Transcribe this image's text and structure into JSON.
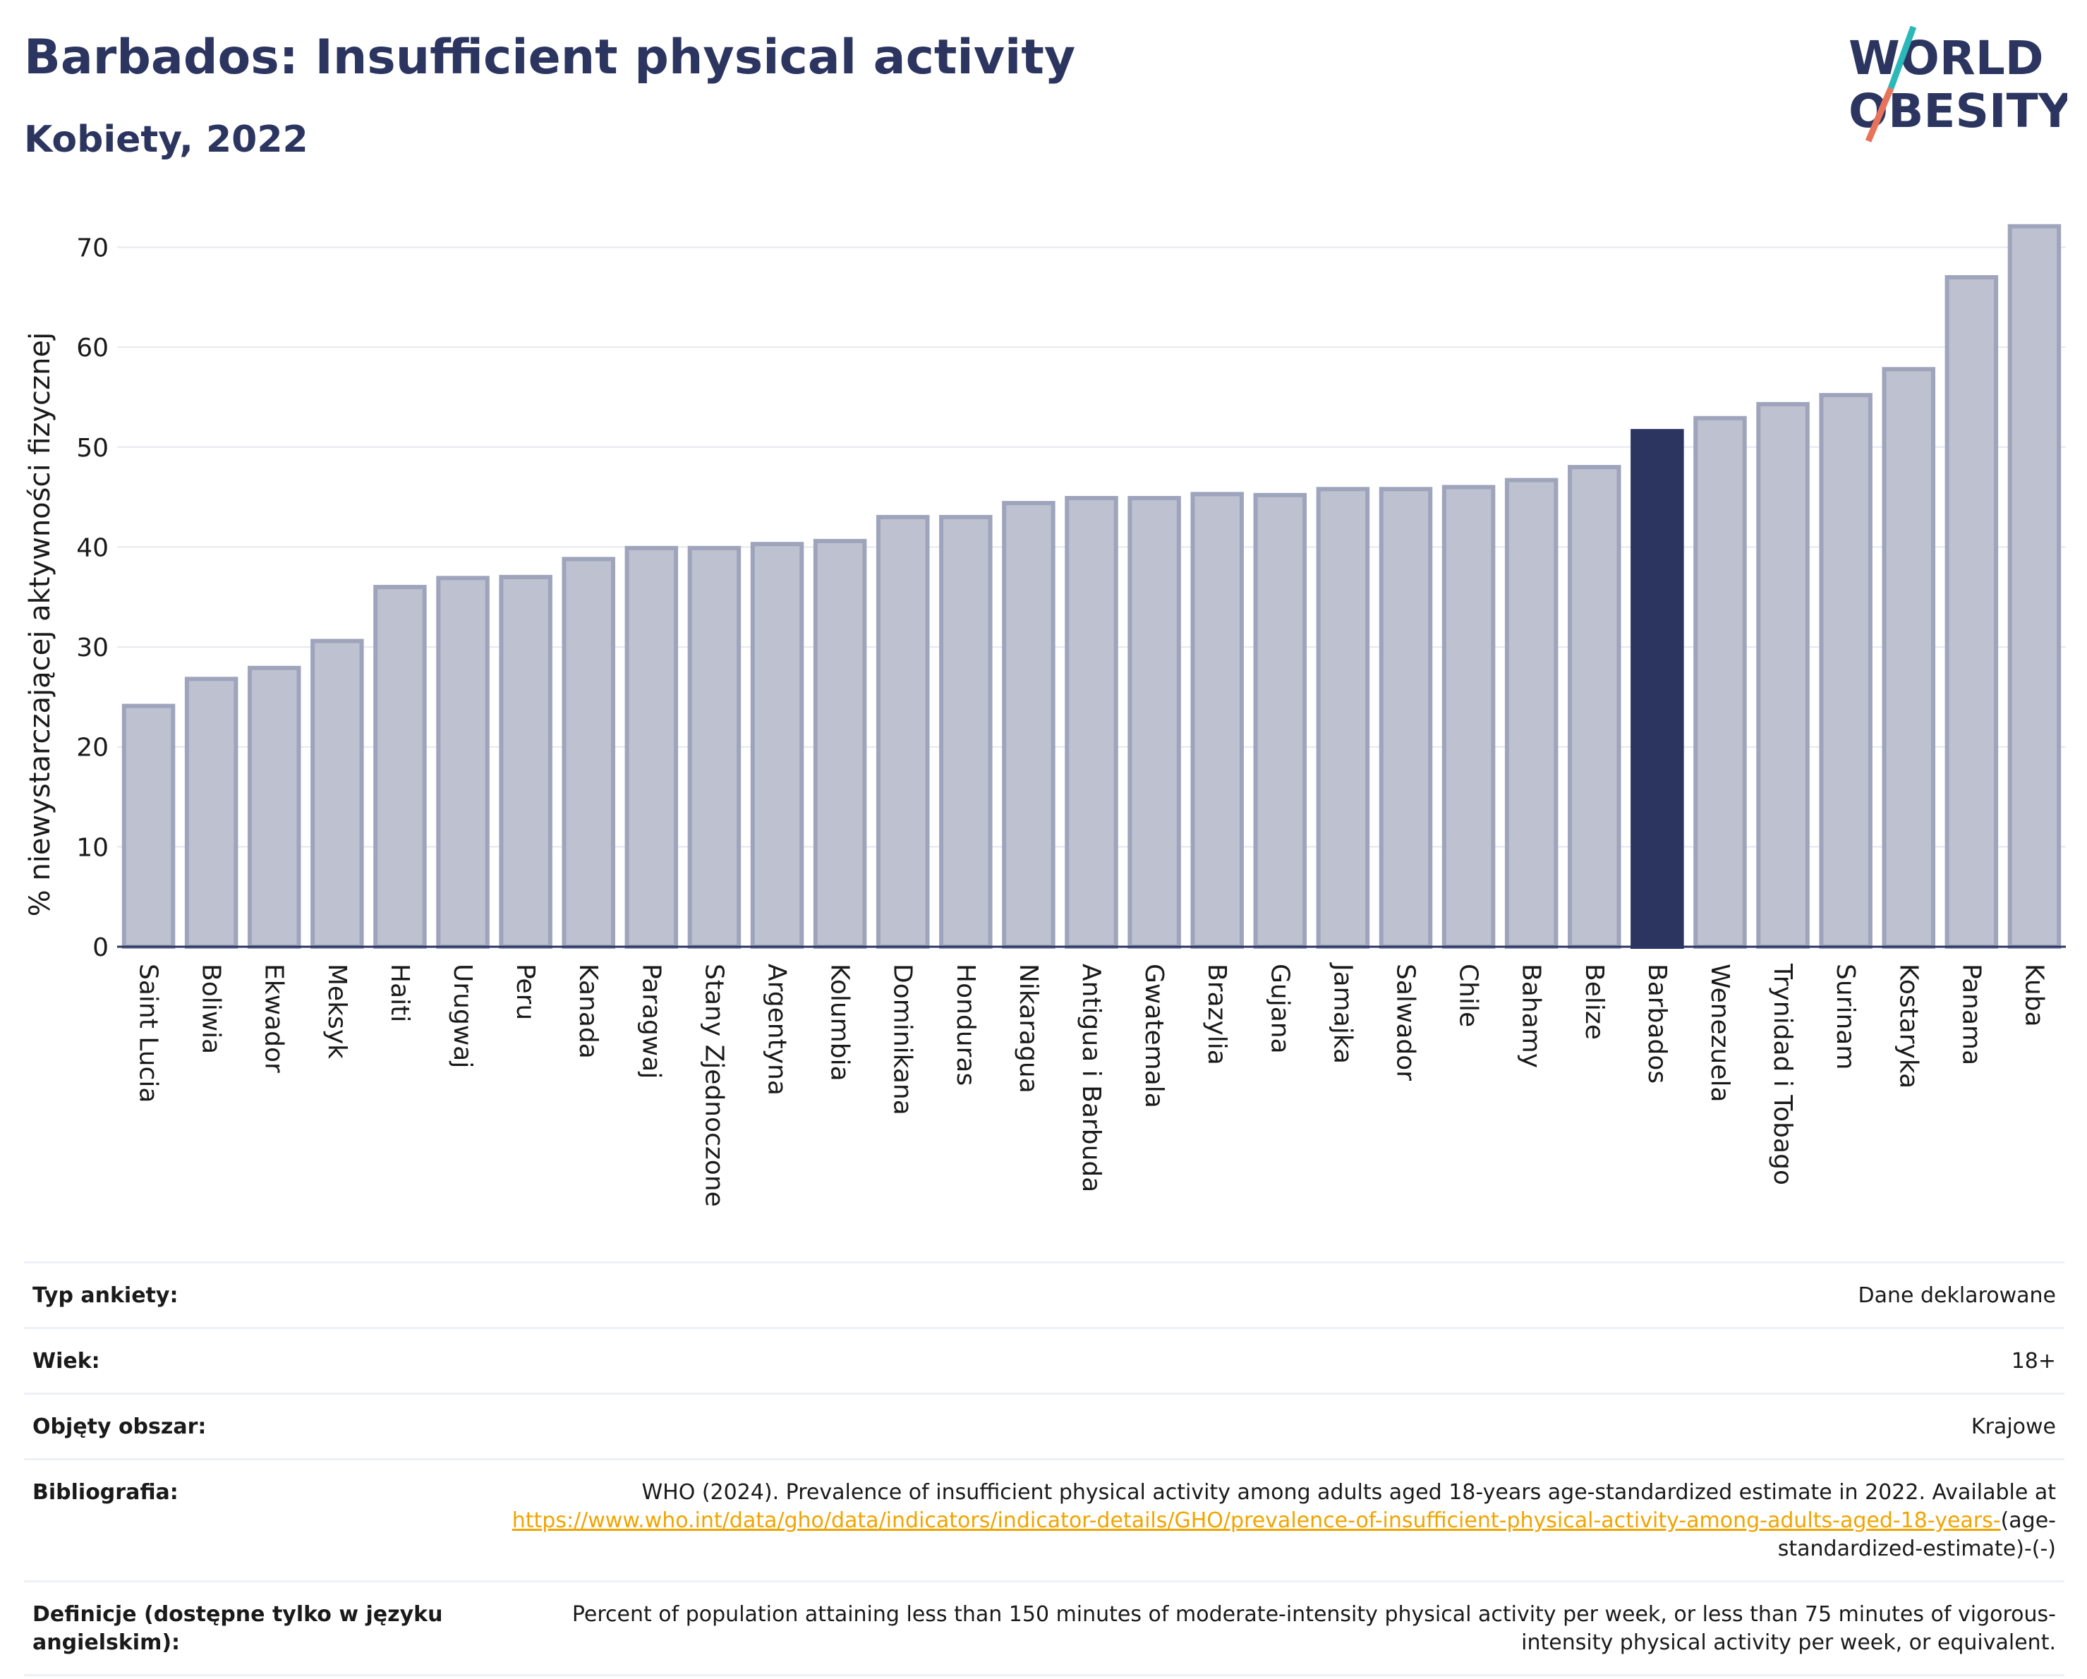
{
  "header": {
    "title": "Barbados: Insufficient physical activity",
    "subtitle": "Kobiety, 2022"
  },
  "logo": {
    "line1": "WORLD",
    "line2": "OBESITY",
    "accent_teal": "#2bb8b8",
    "accent_coral": "#e8735a"
  },
  "colors": {
    "bar": "#bec1cf",
    "bar_border": "#9ea4bb",
    "highlight": "#2b3560",
    "grid": "#e6e8ef",
    "axis": "#2b3560"
  },
  "chart_data": {
    "type": "bar",
    "ylabel": "% niewystarczającej aktywności fizycznej",
    "ylim": [
      0,
      73
    ],
    "yticks": [
      0,
      10,
      20,
      30,
      40,
      50,
      60,
      70
    ],
    "grid": true,
    "highlight": "Barbados",
    "categories": [
      "Saint Lucia",
      "Boliwia",
      "Ekwador",
      "Meksyk",
      "Haiti",
      "Urugwaj",
      "Peru",
      "Kanada",
      "Paragwaj",
      "Stany Zjednoczone",
      "Argentyna",
      "Kolumbia",
      "Dominikana",
      "Honduras",
      "Nikaragua",
      "Antigua i Barbuda",
      "Gwatemala",
      "Brazylia",
      "Gujana",
      "Jamajka",
      "Salwador",
      "Chile",
      "Bahamy",
      "Belize",
      "Barbados",
      "Wenezuela",
      "Trynidad i Tobago",
      "Surinam",
      "Kostaryka",
      "Panama",
      "Kuba"
    ],
    "values": [
      24.1,
      26.8,
      27.9,
      30.6,
      36.0,
      36.9,
      37.0,
      38.8,
      39.9,
      39.9,
      40.3,
      40.6,
      43.0,
      43.0,
      44.4,
      44.9,
      44.9,
      45.3,
      45.2,
      45.8,
      45.8,
      46.0,
      46.7,
      48.0,
      51.6,
      52.9,
      54.3,
      55.2,
      57.8,
      67.0,
      72.1
    ]
  },
  "info": {
    "survey_type_label": "Typ ankiety:",
    "survey_type_value": "Dane deklarowane",
    "age_label": "Wiek:",
    "age_value": "18+",
    "area_label": "Objęty obszar:",
    "area_value": "Krajowe",
    "bibliography_label": "Bibliografia:",
    "bibliography_text": "WHO (2024). Prevalence of insufficient physical activity among adults aged 18-years age-standardized estimate in 2022. Available at",
    "bibliography_link": "https://www.who.int/data/gho/data/indicators/indicator-details/GHO/prevalence-of-insufficient-physical-activity-among-adults-aged-18-years-",
    "bibliography_suffix": "(age-standardized-estimate)-(-)",
    "definitions_label": "Definicje (dostępne tylko w języku angielskim):",
    "definitions_value": "Percent of population attaining less than 150 minutes of moderate-intensity physical activity per week, or less than 75 minutes of vigorous-intensity physical activity per week, or equivalent."
  }
}
